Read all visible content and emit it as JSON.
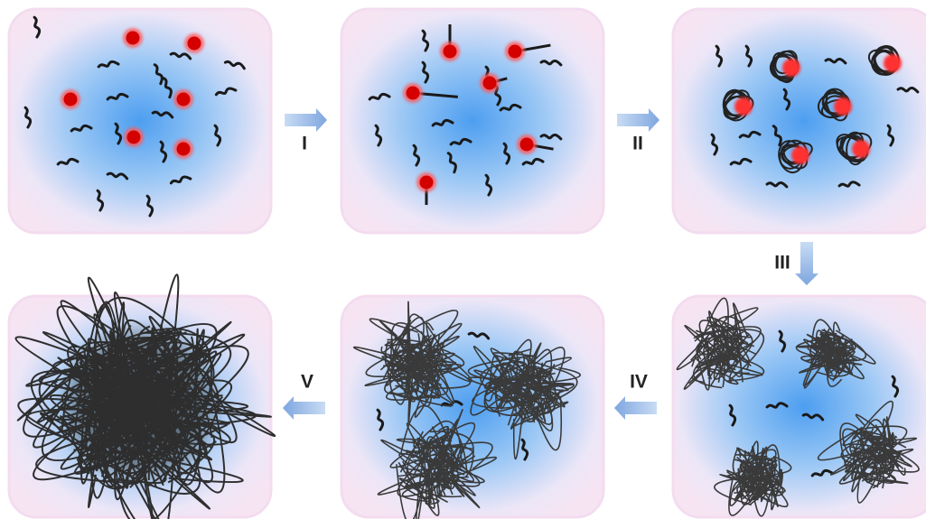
{
  "steps": [
    "I",
    "II",
    "III",
    "IV",
    "V"
  ]
}
